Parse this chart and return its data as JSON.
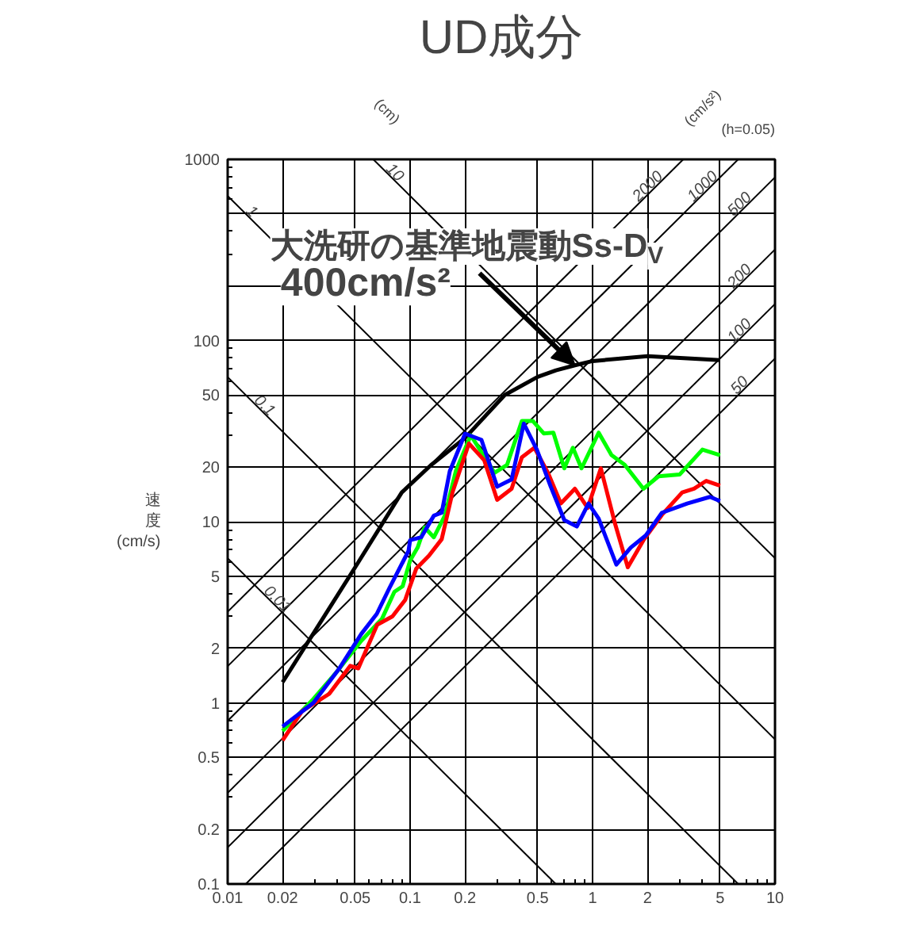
{
  "chart_data": {
    "type": "line",
    "title": "UD成分",
    "ylabel": "速度 (cm/s)",
    "log": "xy",
    "grid": true,
    "xlim": [
      0.01,
      10
    ],
    "ylim": [
      0.1,
      1000
    ],
    "xticks": [
      0.01,
      0.02,
      0.05,
      0.1,
      0.2,
      0.5,
      1,
      2,
      5,
      10
    ],
    "yticks": [
      0.1,
      0.2,
      0.5,
      1,
      2,
      5,
      10,
      20,
      50,
      100,
      {
        "value": 200,
        "label": null
      },
      {
        "value": 500,
        "label": null
      },
      1000
    ],
    "annotations": [
      "(cm)",
      "(cm/s²)",
      "(h=0.05)",
      {
        "text": "50",
        "x": 6.67,
        "y": 53.1
      },
      {
        "text": "100",
        "x": 6.67,
        "y": 106.2
      },
      {
        "text": "200",
        "x": 6.67,
        "y": 212.3
      },
      {
        "text": "500",
        "x": 6.67,
        "y": 530.8
      },
      {
        "text": "1000",
        "x": 4.19,
        "y": 666.9
      },
      {
        "text": "2000",
        "x": 2.094,
        "y": 666.6
      },
      {
        "text": "0.01",
        "x": 0.01795,
        "y": 3.5
      },
      {
        "text": "0.1",
        "x": 0.01528,
        "y": 41.1
      },
      {
        "text": "1",
        "x": 0.013,
        "y": 483
      },
      {
        "text": "10",
        "x": 0.0791,
        "y": 794
      }
    ],
    "series": [
      {
        "color": "#000000",
        "x": [
          0.01257,
          10
        ],
        "values": [
          0.1,
          79.58
        ]
      },
      {
        "color": "#000000",
        "x": [
          0.01,
          10
        ],
        "values": [
          0.1592,
          159.2
        ]
      },
      {
        "color": "#000000",
        "x": [
          0.01,
          10
        ],
        "values": [
          0.3183,
          318.3
        ]
      },
      {
        "color": "#000000",
        "x": [
          0.01,
          10
        ],
        "values": [
          0.7958,
          795.8
        ]
      },
      {
        "color": "#000000",
        "x": [
          0.01,
          6.283
        ],
        "values": [
          1.592,
          1000
        ]
      },
      {
        "color": "#000000",
        "x": [
          0.01,
          3.142
        ],
        "values": [
          3.183,
          1000
        ]
      },
      {
        "color": "#000000",
        "x": [
          0.01,
          0.6283
        ],
        "values": [
          6.283,
          0.1
        ]
      },
      {
        "color": "#000000",
        "x": [
          0.01,
          6.283
        ],
        "values": [
          62.83,
          0.1
        ]
      },
      {
        "color": "#000000",
        "x": [
          0.01,
          10
        ],
        "values": [
          628.3,
          0.6283
        ]
      },
      {
        "color": "#000000",
        "x": [
          0.06283,
          10
        ],
        "values": [
          1000,
          6.283
        ]
      },
      {
        "name": "大洗研の基準地震動Ss-D$_{V}$\n400cm/s²",
        "color": "#000000",
        "x": [
          0.02,
          0.05,
          0.09,
          0.13,
          0.2,
          0.33,
          0.5,
          0.63,
          0.8,
          1,
          2,
          5
        ],
        "values": [
          1.3,
          5.6,
          14.5,
          20.5,
          29,
          50,
          63,
          68.5,
          73,
          77,
          82,
          78
        ]
      },
      {
        "color": "#00ff00",
        "x": [
          0.02,
          0.0295,
          0.04,
          0.054,
          0.07,
          0.082,
          0.091,
          0.1,
          0.11,
          0.12,
          0.135,
          0.155,
          0.178,
          0.215,
          0.29,
          0.34,
          0.41,
          0.47,
          0.54,
          0.61,
          0.7,
          0.78,
          0.87,
          1.08,
          1.27,
          1.5,
          1.9,
          2.3,
          3.0,
          4.0,
          5.0
        ],
        "values": [
          0.7,
          1.05,
          1.5,
          2.2,
          2.9,
          4.1,
          4.4,
          6.1,
          7.2,
          9.3,
          8.2,
          10.8,
          19,
          30,
          18.6,
          20.6,
          36,
          36,
          30.7,
          31,
          19.7,
          25.6,
          19.7,
          31,
          23.3,
          20.6,
          15.2,
          17.8,
          18.2,
          25,
          23.3
        ]
      },
      {
        "color": "#ff0000",
        "x": [
          0.02,
          0.0256,
          0.036,
          0.047,
          0.052,
          0.066,
          0.08,
          0.094,
          0.108,
          0.127,
          0.149,
          0.171,
          0.21,
          0.255,
          0.3,
          0.36,
          0.41,
          0.48,
          0.57,
          0.67,
          0.8,
          0.94,
          1.11,
          1.33,
          1.56,
          1.9,
          2.4,
          3.1,
          3.6,
          4.2,
          5.0
        ],
        "values": [
          0.62,
          0.9,
          1.12,
          1.6,
          1.55,
          2.7,
          3.0,
          3.7,
          5.5,
          6.5,
          8.0,
          14.6,
          27,
          21.8,
          13.2,
          15.2,
          22.7,
          25.6,
          18.6,
          12.6,
          15.2,
          11.9,
          19.7,
          9.7,
          5.6,
          7.9,
          10.9,
          14.5,
          15.2,
          16.8,
          15.8
        ]
      },
      {
        "color": "#0000ff",
        "x": [
          0.02,
          0.0295,
          0.0406,
          0.054,
          0.0657,
          0.077,
          0.098,
          0.1,
          0.115,
          0.135,
          0.149,
          0.165,
          0.2,
          0.246,
          0.3,
          0.36,
          0.42,
          0.495,
          0.59,
          0.7,
          0.82,
          0.95,
          1.08,
          1.35,
          1.62,
          1.96,
          2.4,
          3.3,
          4.4,
          5.0
        ],
        "values": [
          0.74,
          1.0,
          1.53,
          2.4,
          3.1,
          4.3,
          6.9,
          7.9,
          8.2,
          10.8,
          11.2,
          19,
          30.6,
          28.3,
          15.6,
          17.1,
          34.8,
          25,
          15.6,
          10.2,
          9.4,
          12.6,
          10.4,
          5.8,
          7.2,
          8.4,
          11.2,
          12.6,
          13.7,
          13
        ]
      }
    ]
  }
}
